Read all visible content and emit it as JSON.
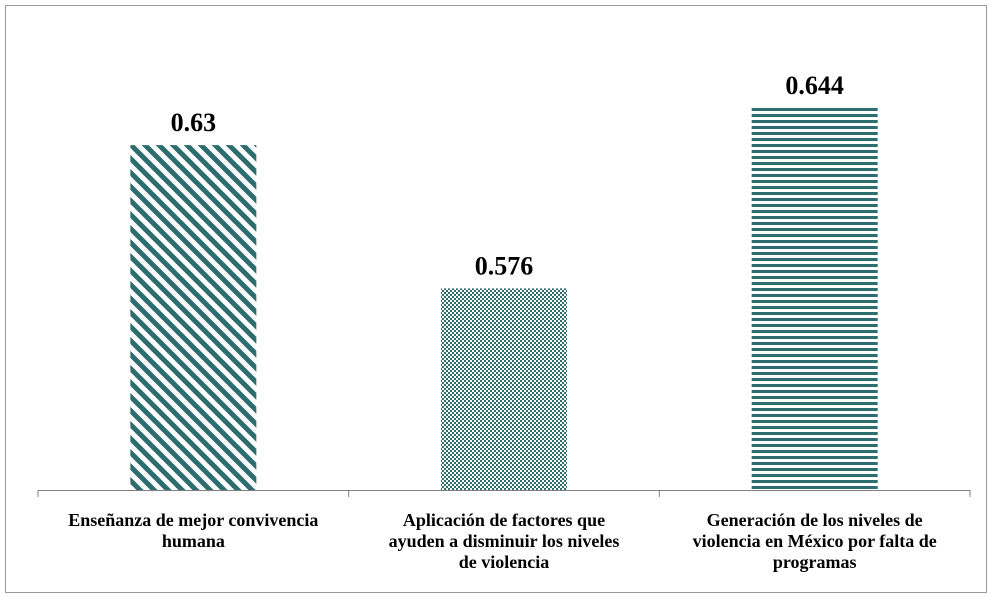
{
  "chart_data": {
    "type": "bar",
    "categories": [
      "Enseñanza de mejor convivencia humana",
      "Aplicación de factores que ayuden a disminuir los niveles de violencia",
      "Generación de los niveles de violencia en México por falta de programas"
    ],
    "category_lines": [
      [
        "Enseñanza de mejor convivencia",
        "humana"
      ],
      [
        "Aplicación de factores que",
        "ayuden a disminuir los niveles",
        "de violencia"
      ],
      [
        "Generación de los niveles de",
        "violencia en México por falta de",
        "programas"
      ]
    ],
    "values": [
      0.63,
      0.576,
      0.644
    ],
    "value_labels": [
      "0.63",
      "0.576",
      "0.644"
    ],
    "patterns": [
      "diagonal-stripes",
      "checker",
      "horizontal-stripes"
    ],
    "ylim": [
      0.5,
      0.65
    ],
    "title": "",
    "xlabel": "",
    "ylabel": "",
    "grid": false,
    "legend": "none",
    "colors": {
      "bar": "#2d6d6f",
      "axis": "#808080",
      "frame": "#9a9a9a"
    }
  }
}
